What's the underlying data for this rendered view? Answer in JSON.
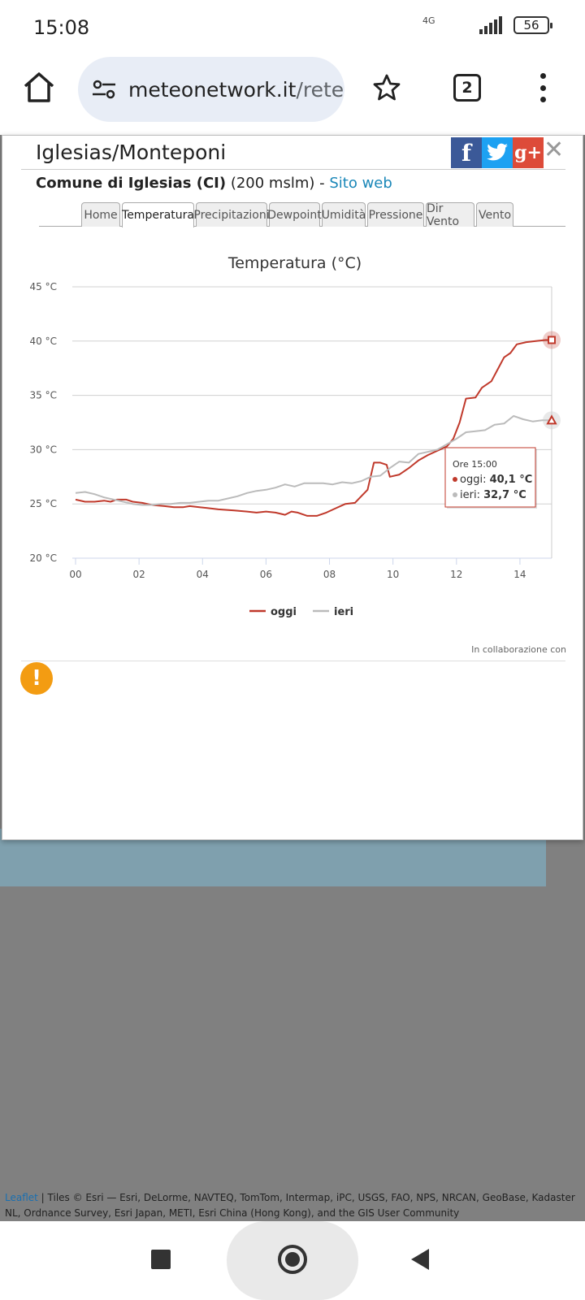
{
  "status": {
    "time": "15:08",
    "network": "4G",
    "battery": "56"
  },
  "browser": {
    "url_host": "meteonetwork.it",
    "url_path": "/rete",
    "tab_count": "2"
  },
  "popup": {
    "title": "Iglesias/Monteponi",
    "municipality": "Comune di Iglesias (CI)",
    "altitude": "(200 mslm) - ",
    "website_link": "Sito web",
    "tabs": [
      "Home",
      "Temperatura",
      "Precipitazioni",
      "Dewpoint",
      "Umidità",
      "Pressione",
      "Dir Vento",
      "Vento"
    ],
    "active_tab": "Temperatura",
    "collab_text": "In collaborazione con",
    "social": {
      "facebook": "f",
      "twitter": "t",
      "googleplus": "g+",
      "close": "✕"
    }
  },
  "chart_data": {
    "type": "line",
    "title": "Temperatura (°C)",
    "y_unit": "°C",
    "ylim": [
      20,
      45
    ],
    "y_ticks": [
      "20 °C",
      "25 °C",
      "30 °C",
      "35 °C",
      "40 °C",
      "45 °C"
    ],
    "x_ticks": [
      "00",
      "02",
      "04",
      "06",
      "08",
      "10",
      "12",
      "14"
    ],
    "xlim": [
      0,
      15
    ],
    "grid": true,
    "legend_position": "bottom",
    "colors": {
      "oggi": "#c0392b",
      "ieri": "#bbbbbb"
    },
    "series": [
      {
        "name": "oggi",
        "points": [
          [
            0,
            25.4
          ],
          [
            0.3,
            25.2
          ],
          [
            0.6,
            25.2
          ],
          [
            0.9,
            25.3
          ],
          [
            1.1,
            25.2
          ],
          [
            1.3,
            25.4
          ],
          [
            1.6,
            25.4
          ],
          [
            1.8,
            25.2
          ],
          [
            2.1,
            25.1
          ],
          [
            2.4,
            24.9
          ],
          [
            2.8,
            24.8
          ],
          [
            3.1,
            24.7
          ],
          [
            3.4,
            24.7
          ],
          [
            3.6,
            24.8
          ],
          [
            3.9,
            24.7
          ],
          [
            4.2,
            24.6
          ],
          [
            4.5,
            24.5
          ],
          [
            5.0,
            24.4
          ],
          [
            5.4,
            24.3
          ],
          [
            5.7,
            24.2
          ],
          [
            6.0,
            24.3
          ],
          [
            6.3,
            24.2
          ],
          [
            6.6,
            24.0
          ],
          [
            6.8,
            24.3
          ],
          [
            7.0,
            24.2
          ],
          [
            7.3,
            23.9
          ],
          [
            7.6,
            23.9
          ],
          [
            7.9,
            24.2
          ],
          [
            8.2,
            24.6
          ],
          [
            8.5,
            25.0
          ],
          [
            8.8,
            25.1
          ],
          [
            9.0,
            25.7
          ],
          [
            9.2,
            26.3
          ],
          [
            9.4,
            28.8
          ],
          [
            9.6,
            28.8
          ],
          [
            9.8,
            28.6
          ],
          [
            9.9,
            27.5
          ],
          [
            10.2,
            27.7
          ],
          [
            10.5,
            28.3
          ],
          [
            10.8,
            29.0
          ],
          [
            11.1,
            29.5
          ],
          [
            11.4,
            29.9
          ],
          [
            11.7,
            30.3
          ],
          [
            11.9,
            31.0
          ],
          [
            12.1,
            32.5
          ],
          [
            12.3,
            34.7
          ],
          [
            12.6,
            34.8
          ],
          [
            12.8,
            35.7
          ],
          [
            13.1,
            36.3
          ],
          [
            13.3,
            37.4
          ],
          [
            13.5,
            38.5
          ],
          [
            13.7,
            38.9
          ],
          [
            13.9,
            39.7
          ],
          [
            14.2,
            39.9
          ],
          [
            14.5,
            40.0
          ],
          [
            14.8,
            40.1
          ],
          [
            15,
            40.1
          ]
        ]
      },
      {
        "name": "ieri",
        "points": [
          [
            0,
            26.0
          ],
          [
            0.3,
            26.1
          ],
          [
            0.6,
            25.9
          ],
          [
            0.9,
            25.6
          ],
          [
            1.2,
            25.4
          ],
          [
            1.5,
            25.2
          ],
          [
            1.8,
            25.0
          ],
          [
            2.1,
            24.9
          ],
          [
            2.4,
            24.9
          ],
          [
            2.7,
            25.0
          ],
          [
            3.0,
            25.0
          ],
          [
            3.3,
            25.1
          ],
          [
            3.6,
            25.1
          ],
          [
            3.9,
            25.2
          ],
          [
            4.2,
            25.3
          ],
          [
            4.5,
            25.3
          ],
          [
            4.8,
            25.5
          ],
          [
            5.1,
            25.7
          ],
          [
            5.4,
            26.0
          ],
          [
            5.7,
            26.2
          ],
          [
            6.0,
            26.3
          ],
          [
            6.3,
            26.5
          ],
          [
            6.6,
            26.8
          ],
          [
            6.9,
            26.6
          ],
          [
            7.2,
            26.9
          ],
          [
            7.5,
            26.9
          ],
          [
            7.8,
            26.9
          ],
          [
            8.1,
            26.8
          ],
          [
            8.4,
            27.0
          ],
          [
            8.7,
            26.9
          ],
          [
            9.0,
            27.1
          ],
          [
            9.3,
            27.5
          ],
          [
            9.6,
            27.6
          ],
          [
            9.9,
            28.3
          ],
          [
            10.2,
            28.9
          ],
          [
            10.5,
            28.8
          ],
          [
            10.8,
            29.6
          ],
          [
            11.1,
            29.8
          ],
          [
            11.4,
            30.0
          ],
          [
            11.7,
            30.5
          ],
          [
            12.0,
            31.0
          ],
          [
            12.3,
            31.6
          ],
          [
            12.6,
            31.7
          ],
          [
            12.9,
            31.8
          ],
          [
            13.2,
            32.3
          ],
          [
            13.5,
            32.4
          ],
          [
            13.8,
            33.1
          ],
          [
            14.1,
            32.8
          ],
          [
            14.4,
            32.6
          ],
          [
            14.7,
            32.7
          ],
          [
            15,
            32.7
          ]
        ]
      }
    ],
    "tooltip": {
      "header": "Ore 15:00",
      "oggi_label": "oggi: ",
      "oggi_value": "40,1 °C",
      "ieri_label": "ieri: ",
      "ieri_value": "32,7 °C"
    }
  },
  "map": {
    "attribution_link": "Leaflet",
    "attribution_text": " | Tiles © Esri — Esri, DeLorme, NAVTEQ, TomTom, Intermap, iPC, USGS, FAO, NPS, NRCAN, GeoBase, Kadaster NL, Ordnance Survey, Esri Japan, METI, Esri China (Hong Kong), and the GIS User Community"
  }
}
